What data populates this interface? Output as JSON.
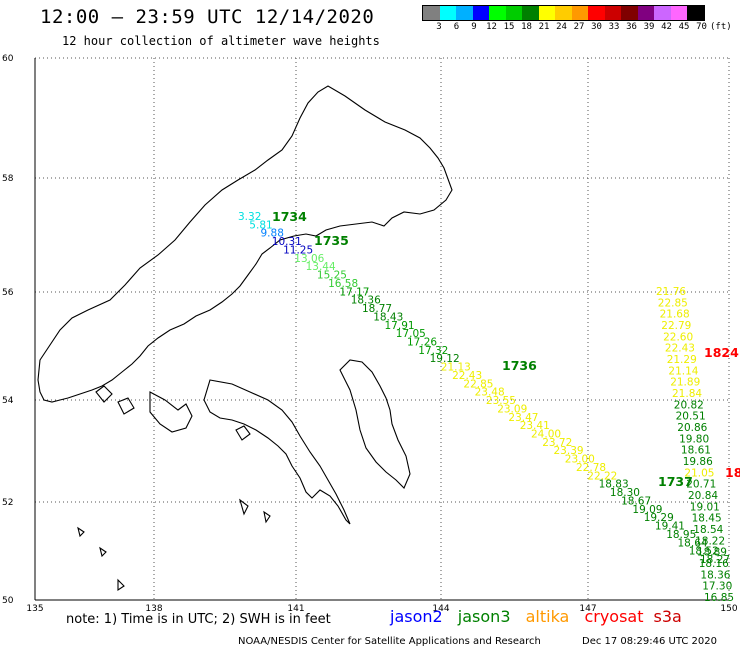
{
  "header": {
    "title": "12:00 – 23:59 UTC 12/14/2020",
    "subtitle": "12 hour collection of altimeter wave heights"
  },
  "color_scale": {
    "colors": [
      "#808080",
      "#00ffff",
      "#00b0ff",
      "#0000ff",
      "#00ff00",
      "#00cc00",
      "#008000",
      "#ffff00",
      "#ffcc00",
      "#ff9900",
      "#ff0000",
      "#cc0000",
      "#800000",
      "#800080",
      "#cc66ff",
      "#ff66ff",
      "#000000"
    ],
    "labels": [
      "3",
      "6",
      "9",
      "12",
      "15",
      "18",
      "21",
      "24",
      "27",
      "30",
      "33",
      "36",
      "39",
      "42",
      "45",
      "70",
      "(ft)"
    ]
  },
  "axes": {
    "lat_ticks": [
      "60",
      "58",
      "56",
      "54",
      "52",
      "50"
    ],
    "lon_ticks": [
      "135",
      "138",
      "141",
      "144",
      "147",
      "150"
    ]
  },
  "satellites": {
    "jason2": {
      "label": "jason2",
      "color": "#0000ff"
    },
    "jason3": {
      "label": "jason3",
      "color": "#008000"
    },
    "altika": {
      "label": "altika",
      "color": "#ff9900"
    },
    "cryosat": {
      "label": "cryosat",
      "color": "#ff0000"
    },
    "s3a": {
      "label": "s3a",
      "color": "#cc0000"
    }
  },
  "passes": [
    {
      "time": "1734",
      "color": "#008000"
    },
    {
      "time": "1735",
      "color": "#008000"
    },
    {
      "time": "1736",
      "color": "#008000"
    },
    {
      "time": "1737",
      "color": "#008000"
    },
    {
      "time": "1824",
      "color": "#ff0000"
    },
    {
      "time": "18",
      "color": "#ff0000"
    }
  ],
  "track_a": [
    {
      "v": "3.32",
      "c": "#00e0e0"
    },
    {
      "v": "5.81",
      "c": "#00e0e0"
    },
    {
      "v": "9.88",
      "c": "#0080ff"
    },
    {
      "v": "10.31",
      "c": "#0000c0"
    },
    {
      "v": "11.25",
      "c": "#0000c0"
    },
    {
      "v": "13.06",
      "c": "#66ee66"
    },
    {
      "v": "13.44",
      "c": "#66ee66"
    },
    {
      "v": "15.25",
      "c": "#33cc33"
    },
    {
      "v": "16.58",
      "c": "#33cc33"
    },
    {
      "v": "17.17",
      "c": "#009900"
    },
    {
      "v": "18.36",
      "c": "#008000"
    },
    {
      "v": "18.77",
      "c": "#008000"
    },
    {
      "v": "18.43",
      "c": "#008000"
    },
    {
      "v": "17.91",
      "c": "#009900"
    },
    {
      "v": "17.05",
      "c": "#009900"
    },
    {
      "v": "17.26",
      "c": "#009900"
    },
    {
      "v": "17.32",
      "c": "#009900"
    },
    {
      "v": "19.12",
      "c": "#008000"
    },
    {
      "v": "21.13",
      "c": "#eeee00"
    },
    {
      "v": "22.43",
      "c": "#eeee00"
    },
    {
      "v": "22.85",
      "c": "#eeee00"
    },
    {
      "v": "23.48",
      "c": "#eeee00"
    },
    {
      "v": "23.55",
      "c": "#eeee00"
    },
    {
      "v": "23.09",
      "c": "#eeee00"
    },
    {
      "v": "23.47",
      "c": "#eeee00"
    },
    {
      "v": "23.41",
      "c": "#eeee00"
    },
    {
      "v": "24.00",
      "c": "#eeee00"
    },
    {
      "v": "23.72",
      "c": "#eeee00"
    },
    {
      "v": "23.39",
      "c": "#eeee00"
    },
    {
      "v": "23.00",
      "c": "#eeee00"
    },
    {
      "v": "22.78",
      "c": "#eeee00"
    },
    {
      "v": "22.22",
      "c": "#eeee00"
    },
    {
      "v": "18.83",
      "c": "#008000"
    },
    {
      "v": "18.30",
      "c": "#008000"
    },
    {
      "v": "18.67",
      "c": "#008000"
    },
    {
      "v": "19.09",
      "c": "#008000"
    },
    {
      "v": "19.29",
      "c": "#008000"
    },
    {
      "v": "19.41",
      "c": "#008000"
    },
    {
      "v": "18.95",
      "c": "#008000"
    },
    {
      "v": "18.64",
      "c": "#008000"
    },
    {
      "v": "18.52",
      "c": "#008000"
    },
    {
      "v": "18.27",
      "c": "#008000"
    }
  ],
  "track_b": [
    {
      "v": "21.76",
      "c": "#eeee00"
    },
    {
      "v": "22.85",
      "c": "#eeee00"
    },
    {
      "v": "21.68",
      "c": "#eeee00"
    },
    {
      "v": "22.79",
      "c": "#eeee00"
    },
    {
      "v": "22.60",
      "c": "#eeee00"
    },
    {
      "v": "22.43",
      "c": "#eeee00"
    },
    {
      "v": "21.29",
      "c": "#eeee00"
    },
    {
      "v": "21.14",
      "c": "#eeee00"
    },
    {
      "v": "21.89",
      "c": "#eeee00"
    },
    {
      "v": "21.84",
      "c": "#eeee00"
    },
    {
      "v": "20.82",
      "c": "#008000"
    },
    {
      "v": "20.51",
      "c": "#008000"
    },
    {
      "v": "20.86",
      "c": "#008000"
    },
    {
      "v": "19.80",
      "c": "#008000"
    },
    {
      "v": "18.61",
      "c": "#008000"
    },
    {
      "v": "19.86",
      "c": "#008000"
    },
    {
      "v": "21.05",
      "c": "#eeee00"
    },
    {
      "v": "20.71",
      "c": "#008000"
    },
    {
      "v": "20.84",
      "c": "#008000"
    },
    {
      "v": "19.01",
      "c": "#008000"
    },
    {
      "v": "18.45",
      "c": "#008000"
    },
    {
      "v": "18.54",
      "c": "#008000"
    },
    {
      "v": "18.22",
      "c": "#008000"
    },
    {
      "v": "18.89",
      "c": "#008000"
    },
    {
      "v": "18.16",
      "c": "#008000"
    },
    {
      "v": "18.36",
      "c": "#008000"
    },
    {
      "v": "17.30",
      "c": "#008000"
    },
    {
      "v": "16.85",
      "c": "#008000"
    }
  ],
  "footer": {
    "note": "note:  1) Time is in UTC;  2) SWH is in feet",
    "credit": "NOAA/NESDIS Center for Satellite Applications and Research",
    "generated": "Dec 17 08:29:46 UTC 2020"
  }
}
